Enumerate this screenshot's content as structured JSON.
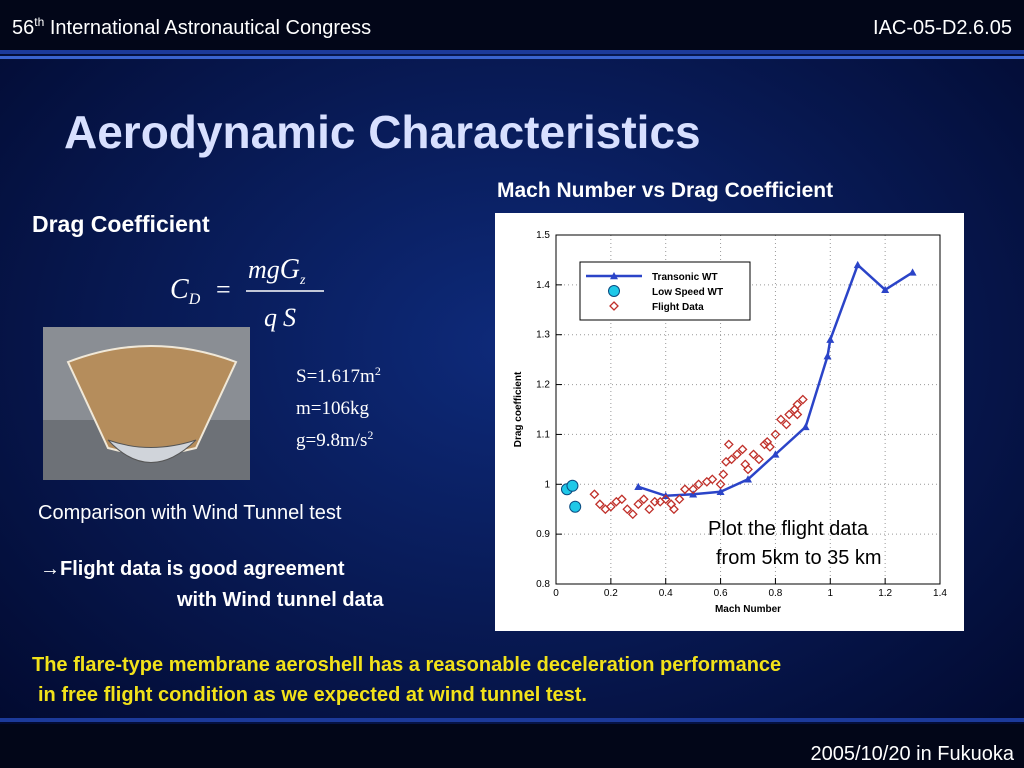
{
  "header": {
    "congress_number": "56",
    "ordinal": "th",
    "congress": "International Astronautical Congress",
    "paper_id": "IAC-05-D2.6.05"
  },
  "title": "Aerodynamic Characteristics",
  "section_heading": "Drag Coefficient",
  "formula": {
    "lhs": "C",
    "lhs_sub": "D",
    "equals": "=",
    "num_a": "mg",
    "num_b": "G",
    "num_sub": "z",
    "den_a": "q",
    "den_b": "S"
  },
  "parameters": [
    {
      "text": "S=1.617m",
      "sup": "2"
    },
    {
      "text": "m=106kg",
      "sup": ""
    },
    {
      "text": "g=9.8m/s",
      "sup": "2"
    }
  ],
  "comparison": "Comparison with Wind Tunnel test",
  "agreement": [
    "→Flight data is good agreement",
    "with Wind tunnel data"
  ],
  "conclusion": [
    "The flare-type membrane aeroshell has a reasonable deceleration performance",
    "in free flight condition as we expected at wind tunnel test."
  ],
  "footer": "2005/10/20 in Fukuoka",
  "chart_data": {
    "type": "scatter",
    "title": "Mach Number vs Drag Coefficient",
    "x_label": "Mach Number",
    "y_label": "Drag coefficient",
    "xlim": [
      0,
      1.4
    ],
    "xticks": [
      0,
      0.2,
      0.4,
      0.6,
      0.8,
      1,
      1.2,
      1.4
    ],
    "ylim": [
      0.8,
      1.5
    ],
    "yticks": [
      0.8,
      0.9,
      1,
      1.1,
      1.2,
      1.3,
      1.4,
      1.5
    ],
    "grid": true,
    "legend": "upper left",
    "annotations": [
      "Plot the flight data",
      "from 5km to 35 km"
    ],
    "series": [
      {
        "name": "Transonic WT",
        "color": "#2b44c8",
        "marker": "triangle",
        "line": true,
        "x": [
          0.3,
          0.4,
          0.5,
          0.6,
          0.7,
          0.8,
          0.91,
          0.99,
          1.0,
          1.1,
          1.2,
          1.3
        ],
        "values": [
          0.995,
          0.977,
          0.98,
          0.985,
          1.01,
          1.06,
          1.115,
          1.257,
          1.29,
          1.44,
          1.39,
          1.425
        ]
      },
      {
        "name": "Low Speed WT",
        "color": "#1fc8e8",
        "marker": "circle",
        "line": false,
        "x": [
          0.04,
          0.06,
          0.07
        ],
        "values": [
          0.99,
          0.997,
          0.955
        ]
      },
      {
        "name": "Flight Data",
        "color": "#c0302a",
        "marker": "diamond",
        "line": false,
        "x": [
          0.14,
          0.16,
          0.18,
          0.2,
          0.22,
          0.24,
          0.26,
          0.28,
          0.3,
          0.32,
          0.34,
          0.36,
          0.38,
          0.4,
          0.42,
          0.43,
          0.45,
          0.47,
          0.5,
          0.52,
          0.55,
          0.57,
          0.6,
          0.61,
          0.62,
          0.63,
          0.64,
          0.66,
          0.68,
          0.69,
          0.7,
          0.72,
          0.74,
          0.76,
          0.77,
          0.78,
          0.8,
          0.82,
          0.84,
          0.85,
          0.87,
          0.88,
          0.9,
          0.88
        ],
        "values": [
          0.98,
          0.96,
          0.95,
          0.955,
          0.965,
          0.97,
          0.95,
          0.94,
          0.96,
          0.97,
          0.95,
          0.965,
          0.965,
          0.97,
          0.96,
          0.95,
          0.97,
          0.99,
          0.99,
          1.0,
          1.005,
          1.01,
          1.0,
          1.02,
          1.045,
          1.08,
          1.05,
          1.06,
          1.07,
          1.04,
          1.03,
          1.06,
          1.05,
          1.08,
          1.085,
          1.075,
          1.1,
          1.13,
          1.12,
          1.14,
          1.15,
          1.16,
          1.17,
          1.14
        ]
      }
    ]
  }
}
